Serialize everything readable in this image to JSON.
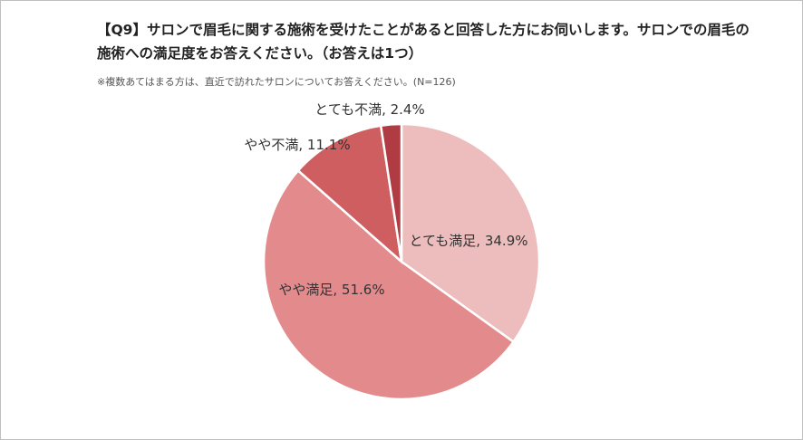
{
  "title": "【Q9】サロンで眉毛に関する施術を受けたことがあると回答した方にお伺いします。サロンでの眉毛の施術への満足度をお答えください。（お答えは1つ）",
  "note": "※複数あてはまる方は、直近で訪れたサロンについてお答えください。(N=126)",
  "chart_data": {
    "type": "pie",
    "start": "12 o'clock",
    "direction": "clockwise",
    "slices": [
      {
        "label": "とても満足",
        "value": 34.9,
        "color": "#edbcbc",
        "display": "とても満足, 34.9%"
      },
      {
        "label": "やや満足",
        "value": 51.6,
        "color": "#e38b8c",
        "display": "やや満足, 51.6%"
      },
      {
        "label": "やや不満",
        "value": 11.1,
        "color": "#cf5e61",
        "display": "やや不満, 11.1%"
      },
      {
        "label": "とても不満",
        "value": 2.4,
        "color": "#b03b42",
        "display": "とても不満, 2.4%"
      }
    ]
  }
}
